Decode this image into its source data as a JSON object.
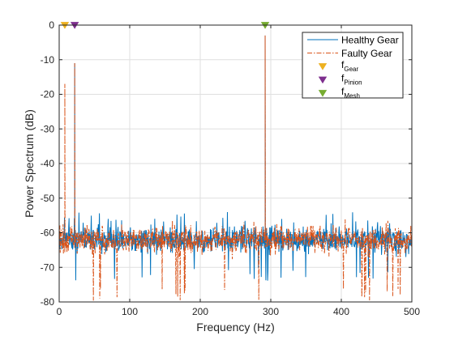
{
  "chart_data": {
    "type": "line",
    "title": "",
    "xlabel": "Frequency (Hz)",
    "ylabel": "Power Spectrum (dB)",
    "xlim": [
      0,
      500
    ],
    "ylim": [
      -80,
      0
    ],
    "x_ticks": [
      0,
      100,
      200,
      300,
      400,
      500
    ],
    "y_ticks": [
      0,
      -10,
      -20,
      -30,
      -40,
      -50,
      -60,
      -70,
      -80
    ],
    "grid": true,
    "legend_position": "top-right",
    "series": [
      {
        "name": "Healthy Gear",
        "style": "solid",
        "color": "#0072bd",
        "noise_floor_db": -62,
        "noise_range_db": [
          -74,
          -54
        ],
        "peaks": [
          {
            "x": 22,
            "y": -11
          },
          {
            "x": 292,
            "y": -3
          }
        ]
      },
      {
        "name": "Faulty Gear",
        "style": "dash-dot",
        "color": "#d95319",
        "noise_floor_db": -62,
        "noise_range_db": [
          -80,
          -56
        ],
        "peaks": [
          {
            "x": 8,
            "y": -17
          },
          {
            "x": 22,
            "y": -11
          },
          {
            "x": 292,
            "y": -3
          }
        ]
      }
    ],
    "markers": [
      {
        "name": "f",
        "sub": "Gear",
        "x": 8,
        "y": 0,
        "color": "#edb120",
        "marker": "triangle-down"
      },
      {
        "name": "f",
        "sub": "Pinion",
        "x": 22,
        "y": 0,
        "color": "#7e2f8e",
        "marker": "triangle-down"
      },
      {
        "name": "f",
        "sub": "Mesh",
        "x": 292,
        "y": 0,
        "color": "#77ac30",
        "marker": "triangle-down"
      }
    ]
  }
}
